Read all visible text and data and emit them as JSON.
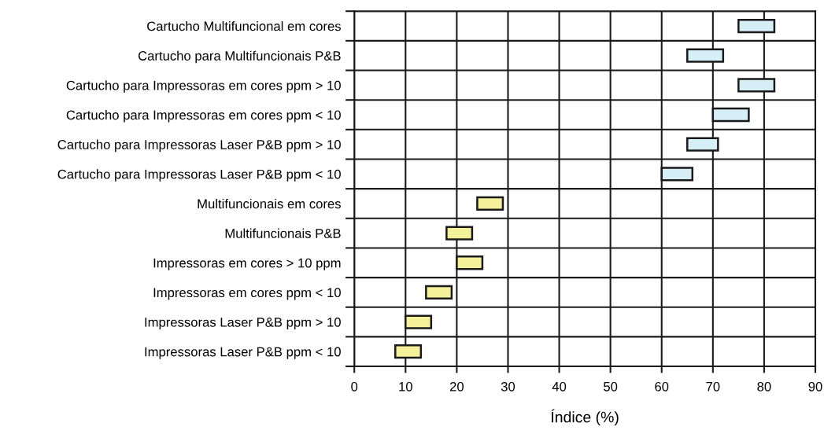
{
  "chart_data": {
    "type": "bar",
    "orientation": "horizontal",
    "xlabel": "Índice (%)",
    "categories": [
      "Cartucho Multifuncional em cores",
      "Cartucho para Multifuncionais P&B",
      "Cartucho para Impressoras em cores ppm > 10",
      "Cartucho para Impressoras em cores ppm < 10",
      "Cartucho para Impressoras Laser P&B ppm > 10",
      "Cartucho para Impressoras Laser P&B ppm < 10",
      "Multifuncionais em cores",
      "Multifuncionais P&B",
      "Impressoras em cores > 10 ppm",
      "Impressoras em cores ppm < 10",
      "Impressoras Laser P&B ppm > 10",
      "Impressoras Laser P&B ppm < 10"
    ],
    "base": [
      75,
      65,
      75,
      70,
      65,
      60,
      24,
      18,
      20,
      14,
      10,
      8
    ],
    "values": [
      7,
      7,
      7,
      7,
      6,
      6,
      5,
      5,
      5,
      5,
      5,
      5
    ],
    "colors": [
      "#d6eef5",
      "#d6eef5",
      "#d6eef5",
      "#d6eef5",
      "#d6eef5",
      "#d6eef5",
      "#f5f09a",
      "#f5f09a",
      "#f5f09a",
      "#f5f09a",
      "#f5f09a",
      "#f5f09a"
    ],
    "xlim": [
      0,
      90
    ],
    "xticks": [
      0,
      10,
      20,
      30,
      40,
      50,
      60,
      70,
      80,
      90
    ],
    "grid": true
  }
}
